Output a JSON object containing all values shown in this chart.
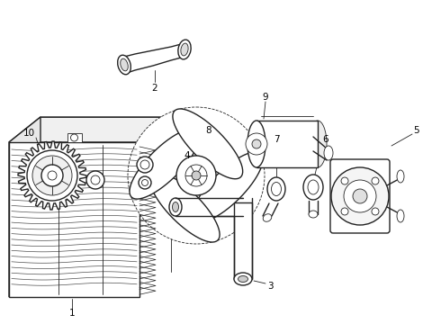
{
  "background_color": "#ffffff",
  "line_color": "#222222",
  "label_color": "#000000",
  "fig_width": 4.9,
  "fig_height": 3.6,
  "dpi": 100
}
